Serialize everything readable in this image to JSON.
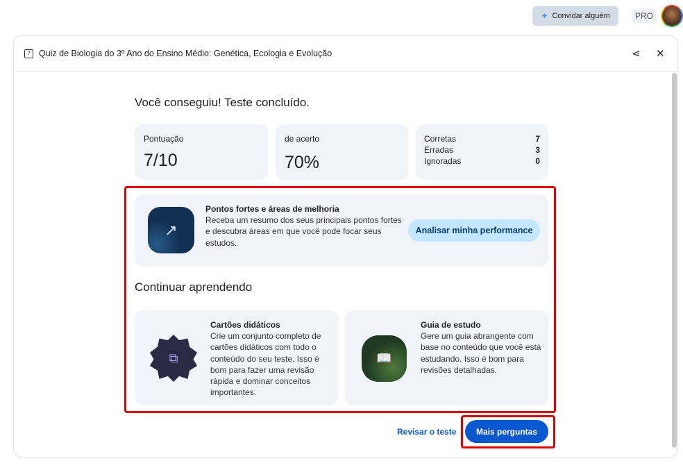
{
  "topbar": {
    "invite_label": "Convidar alguém",
    "plan_badge": "PRO"
  },
  "dialog": {
    "title": "Quiz de Biologia do 3º Ano do Ensino Médio: Genética, Ecologia e Evolução"
  },
  "result": {
    "heading": "Você conseguiu! Teste concluído.",
    "score": {
      "label": "Pontuação",
      "value": "7/10"
    },
    "accuracy": {
      "label": "de acerto",
      "value": "70%"
    },
    "breakdown": [
      {
        "label": "Corretas",
        "value": "7"
      },
      {
        "label": "Erradas",
        "value": "3"
      },
      {
        "label": "Ignoradas",
        "value": "0"
      }
    ]
  },
  "performance": {
    "title": "Pontos fortes e áreas de melhoria",
    "description": "Receba um resumo dos seus principais pontos fortes e descubra áreas em que você pode focar seus estudos.",
    "button": "Analisar minha performance"
  },
  "continue": {
    "heading": "Continuar aprendendo",
    "cards": [
      {
        "title": "Cartões didáticos",
        "description": "Crie um conjunto completo de cartões didáticos com todo o conteúdo do seu teste. Isso é bom para fazer uma revisão rápida e dominar conceitos importantes."
      },
      {
        "title": "Guia de estudo",
        "description": "Gere um guia abrangente com base no conteúdo que você está estudando. Isso é bom para revisões detalhadas."
      }
    ]
  },
  "footer": {
    "review_label": "Revisar o teste",
    "more_label": "Mais perguntas"
  },
  "colors": {
    "accent": "#0b57d0",
    "highlight": "#e00000",
    "card_bg": "#f0f3f8",
    "performance_button": "#c2e7ff"
  }
}
